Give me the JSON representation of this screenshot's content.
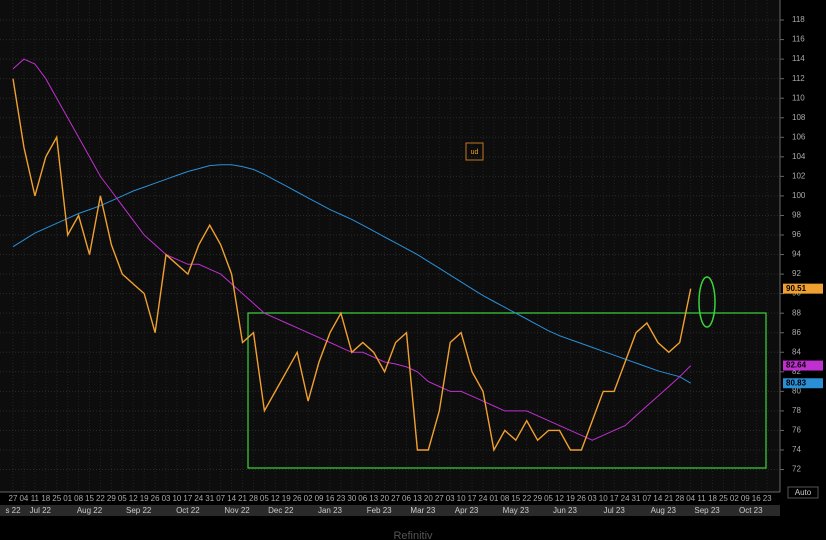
{
  "chart_data": {
    "type": "line",
    "categories": [
      "27",
      "04",
      "11",
      "18",
      "25",
      "01",
      "08",
      "15",
      "22",
      "29",
      "05",
      "12",
      "19",
      "26",
      "03",
      "10",
      "17",
      "24",
      "31",
      "07",
      "14",
      "21",
      "28",
      "05",
      "12",
      "19",
      "26",
      "02",
      "09",
      "16",
      "23",
      "30",
      "06",
      "13",
      "20",
      "27",
      "06",
      "13",
      "20",
      "27",
      "03",
      "10",
      "17",
      "24",
      "01",
      "08",
      "15",
      "22",
      "29",
      "05",
      "12",
      "19",
      "26",
      "03",
      "10",
      "17",
      "24",
      "31",
      "07",
      "14",
      "21",
      "28",
      "04",
      "11",
      "18",
      "25",
      "02",
      "09",
      "16",
      "23"
    ],
    "months": [
      "s 22",
      "Jul 22",
      "Aug 22",
      "Sep 22",
      "Oct 22",
      "Nov 22",
      "Dec 22",
      "Jan 23",
      "Feb 23",
      "Mar 23",
      "Apr 23",
      "May 23",
      "Jun 23",
      "Jul 23",
      "Aug 23",
      "Sep 23",
      "Oct 23"
    ],
    "series": [
      {
        "color": "#f0a030",
        "values": [
          112,
          105,
          100,
          104,
          106,
          96,
          98,
          94,
          100,
          95,
          92,
          91,
          90,
          86,
          94,
          93,
          92,
          95,
          97,
          95,
          92,
          85,
          86,
          78,
          80,
          82,
          84,
          79,
          83,
          86,
          88,
          84,
          85,
          84,
          82,
          85,
          86,
          74,
          74,
          78,
          85,
          86,
          82,
          80,
          74,
          76,
          75,
          77,
          75,
          76,
          76,
          74,
          74,
          77,
          80,
          80,
          83,
          86,
          87,
          85,
          84,
          85,
          90.51,
          null,
          null,
          null,
          null,
          null,
          null,
          null
        ]
      },
      {
        "color": "#2b8fd6",
        "values": [
          94.8,
          95.5,
          96.2,
          96.7,
          97.2,
          97.7,
          98.2,
          98.6,
          99.0,
          99.5,
          100.0,
          100.5,
          100.9,
          101.3,
          101.7,
          102.1,
          102.5,
          102.8,
          103.1,
          103.2,
          103.2,
          103.0,
          102.7,
          102.2,
          101.6,
          101.0,
          100.4,
          99.8,
          99.2,
          98.6,
          98.1,
          97.6,
          97.0,
          96.4,
          95.8,
          95.2,
          94.6,
          94.0,
          93.3,
          92.6,
          91.9,
          91.2,
          90.5,
          89.8,
          89.2,
          88.6,
          88.0,
          87.4,
          86.8,
          86.2,
          85.7,
          85.3,
          84.9,
          84.5,
          84.1,
          83.7,
          83.3,
          82.9,
          82.5,
          82.1,
          81.8,
          81.5,
          80.83,
          null,
          null,
          null,
          null,
          null,
          null,
          null
        ]
      },
      {
        "color": "#c030d0",
        "values": [
          113,
          114,
          113.5,
          112,
          110,
          108,
          106,
          104,
          102,
          100.5,
          99,
          97.5,
          96,
          95,
          94,
          93.5,
          93,
          93,
          92.5,
          92,
          91,
          90,
          89,
          88,
          87.5,
          87,
          86.5,
          86,
          85.5,
          85,
          84.5,
          84,
          84,
          83.5,
          83,
          82.8,
          82.5,
          82,
          81,
          80.5,
          80,
          80,
          79.5,
          79,
          78.5,
          78,
          78,
          78,
          77.5,
          77,
          76.5,
          76,
          75.5,
          75,
          75.5,
          76,
          76.5,
          77.5,
          78.5,
          79.5,
          80.5,
          81.5,
          82.64,
          null,
          null,
          null,
          null,
          null,
          null,
          null
        ]
      }
    ],
    "ylim": [
      69.7,
      120.05
    ],
    "yticks": [
      72,
      74,
      76,
      78,
      80,
      82,
      84,
      86,
      88,
      90,
      92,
      94,
      96,
      98,
      100,
      102,
      104,
      106,
      108,
      110,
      112,
      114,
      116,
      118
    ],
    "grid": true,
    "annotation": "ud",
    "scale_mode": "Auto",
    "watermark": "Refinitiv"
  }
}
